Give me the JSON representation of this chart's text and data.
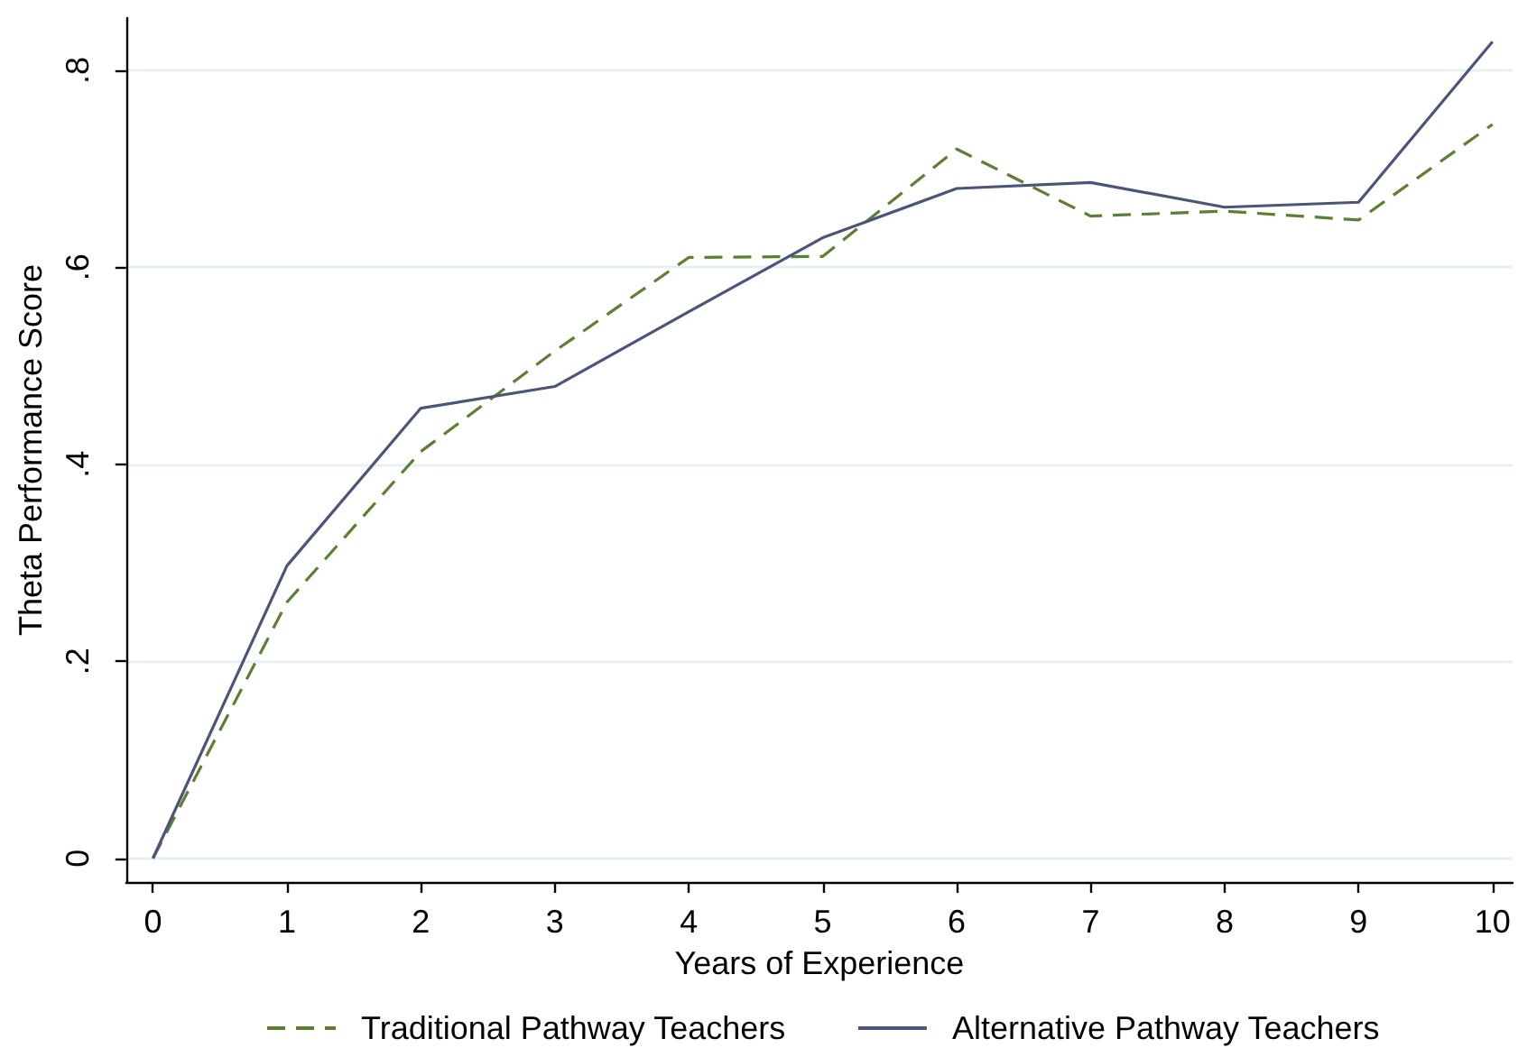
{
  "chart_data": {
    "type": "line",
    "xlabel": "Years of Experience",
    "ylabel": "Theta Performance Score",
    "x": [
      0,
      1,
      2,
      3,
      4,
      5,
      6,
      7,
      8,
      9,
      10
    ],
    "series": [
      {
        "name": "Traditional Pathway Teachers",
        "color": "#5c7f33",
        "line_style": "dashed",
        "values": [
          0,
          0.26,
          0.413,
          0.515,
          0.61,
          0.611,
          0.72,
          0.652,
          0.657,
          0.648,
          0.745
        ]
      },
      {
        "name": "Alternative Pathway Teachers",
        "color": "#4b5578",
        "line_style": "solid",
        "values": [
          0,
          0.297,
          0.457,
          0.479,
          0.555,
          0.63,
          0.68,
          0.686,
          0.661,
          0.666,
          0.829
        ]
      }
    ],
    "xlim": [
      -0.2,
      10.15
    ],
    "xticks": [
      0,
      1,
      2,
      3,
      4,
      5,
      6,
      7,
      8,
      9,
      10
    ],
    "ylim": [
      -0.024,
      0.853
    ],
    "yticks": [
      0,
      {
        "value": 0.2,
        "label": ".2"
      },
      {
        "value": 0.4,
        "label": ".4"
      },
      {
        "value": 0.6,
        "label": ".6"
      },
      {
        "value": 0.8,
        "label": ".8"
      }
    ],
    "grid": "y",
    "legend": "bottom",
    "marker": "none"
  }
}
